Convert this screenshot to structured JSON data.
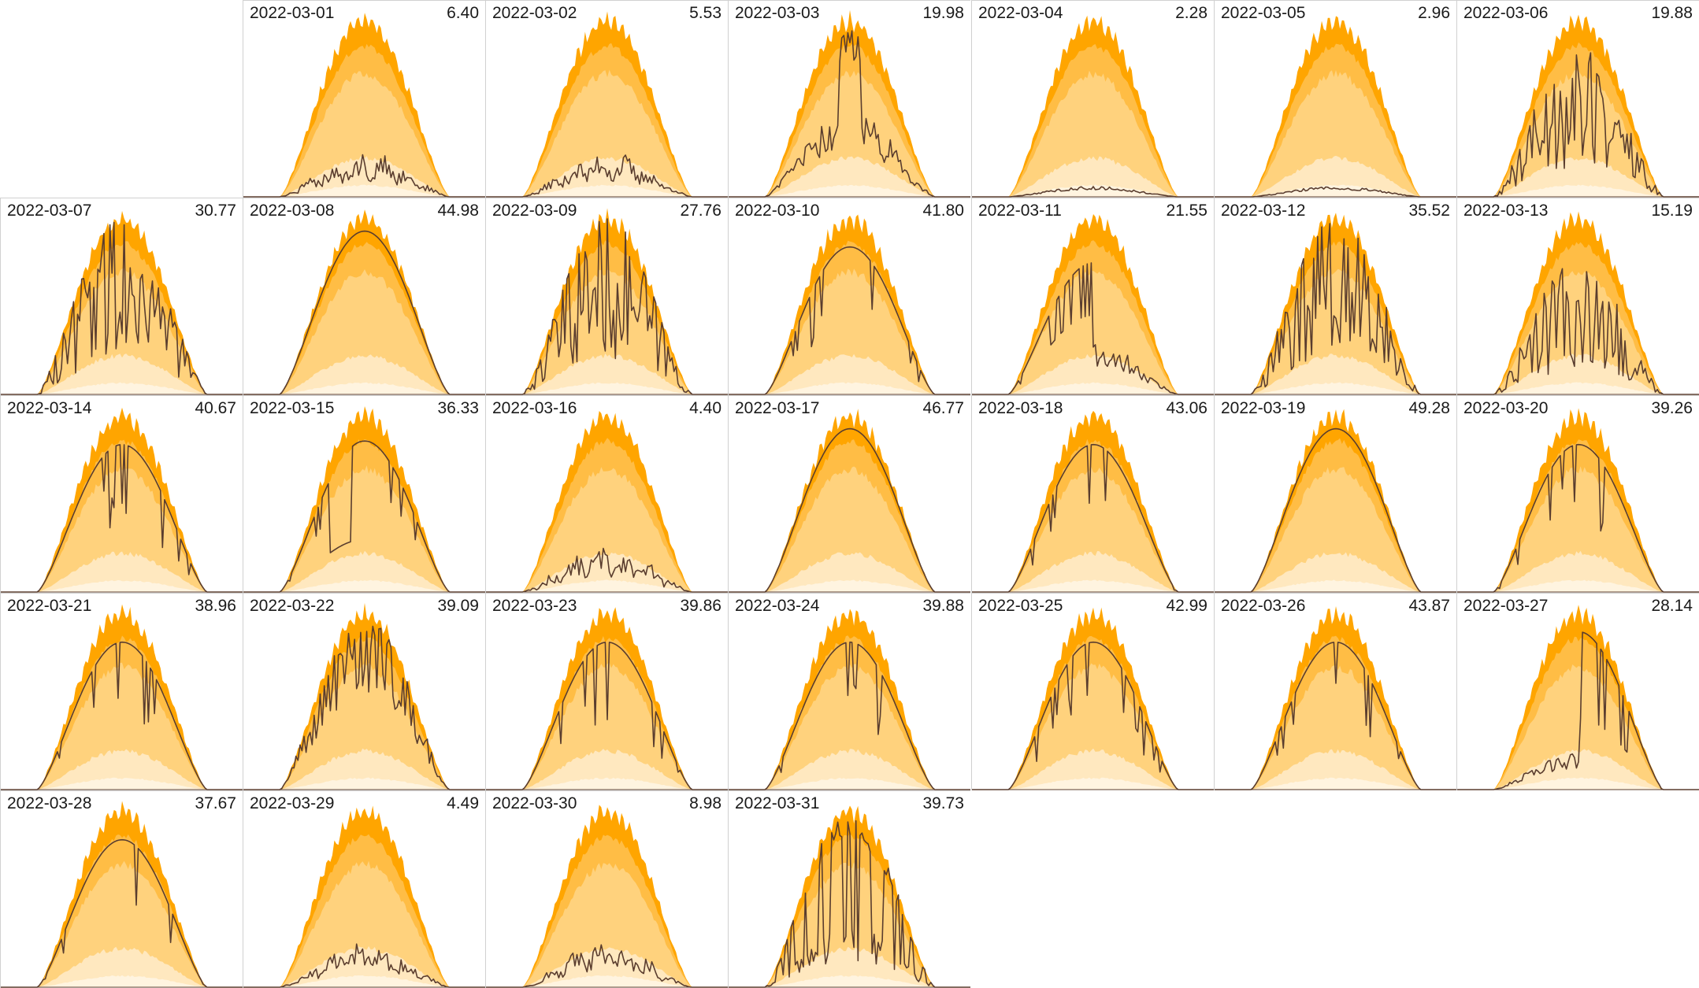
{
  "chart_data": {
    "type": "area",
    "layout": "calendar-small-multiples",
    "colors": {
      "max_band": "#ffa500",
      "upper_band": "#ffbd45",
      "mid_band": "#ffd27d",
      "low_band": "#ffe8bf",
      "min_band": "#fff4e0",
      "actual_line": "#5a3d2e",
      "negative": "#e03020",
      "border": "#d0d0d0"
    },
    "panels": [
      {
        "date": "2022-03-01",
        "value": "6.40",
        "total": 6.4,
        "profile": "low"
      },
      {
        "date": "2022-03-02",
        "value": "5.53",
        "total": 5.53,
        "profile": "low"
      },
      {
        "date": "2022-03-03",
        "value": "19.98",
        "total": 19.98,
        "profile": "peaky-mid"
      },
      {
        "date": "2022-03-04",
        "value": "2.28",
        "total": 2.28,
        "profile": "very-low"
      },
      {
        "date": "2022-03-05",
        "value": "2.96",
        "total": 2.96,
        "profile": "very-low"
      },
      {
        "date": "2022-03-06",
        "value": "19.88",
        "total": 19.88,
        "profile": "spiky"
      },
      {
        "date": "2022-03-07",
        "value": "30.77",
        "total": 30.77,
        "profile": "spiky"
      },
      {
        "date": "2022-03-08",
        "value": "44.98",
        "total": 44.98,
        "profile": "clear"
      },
      {
        "date": "2022-03-09",
        "value": "27.76",
        "total": 27.76,
        "profile": "spiky"
      },
      {
        "date": "2022-03-10",
        "value": "41.80",
        "total": 41.8,
        "profile": "mostly-clear"
      },
      {
        "date": "2022-03-11",
        "value": "21.55",
        "total": 21.55,
        "profile": "morning"
      },
      {
        "date": "2022-03-12",
        "value": "35.52",
        "total": 35.52,
        "profile": "spiky"
      },
      {
        "date": "2022-03-13",
        "value": "15.19",
        "total": 15.19,
        "profile": "spiky"
      },
      {
        "date": "2022-03-14",
        "value": "40.67",
        "total": 40.67,
        "profile": "mostly-clear"
      },
      {
        "date": "2022-03-15",
        "value": "36.33",
        "total": 36.33,
        "profile": "dip"
      },
      {
        "date": "2022-03-16",
        "value": "4.40",
        "total": 4.4,
        "profile": "low"
      },
      {
        "date": "2022-03-17",
        "value": "46.77",
        "total": 46.77,
        "profile": "clear"
      },
      {
        "date": "2022-03-18",
        "value": "43.06",
        "total": 43.06,
        "profile": "mostly-clear"
      },
      {
        "date": "2022-03-19",
        "value": "49.28",
        "total": 49.28,
        "profile": "clear"
      },
      {
        "date": "2022-03-20",
        "value": "39.26",
        "total": 39.26,
        "profile": "mostly-clear"
      },
      {
        "date": "2022-03-21",
        "value": "38.96",
        "total": 38.96,
        "profile": "mostly-clear"
      },
      {
        "date": "2022-03-22",
        "value": "39.09",
        "total": 39.09,
        "profile": "spiky-high"
      },
      {
        "date": "2022-03-23",
        "value": "39.86",
        "total": 39.86,
        "profile": "mostly-clear"
      },
      {
        "date": "2022-03-24",
        "value": "39.88",
        "total": 39.88,
        "profile": "mostly-clear"
      },
      {
        "date": "2022-03-25",
        "value": "42.99",
        "total": 42.99,
        "profile": "mostly-clear"
      },
      {
        "date": "2022-03-26",
        "value": "43.87",
        "total": 43.87,
        "profile": "mostly-clear"
      },
      {
        "date": "2022-03-27",
        "value": "28.14",
        "total": 28.14,
        "profile": "afternoon"
      },
      {
        "date": "2022-03-28",
        "value": "37.67",
        "total": 37.67,
        "profile": "mostly-clear"
      },
      {
        "date": "2022-03-29",
        "value": "4.49",
        "total": 4.49,
        "profile": "low"
      },
      {
        "date": "2022-03-30",
        "value": "8.98",
        "total": 8.98,
        "profile": "low"
      },
      {
        "date": "2022-03-31",
        "value": "39.73",
        "total": 39.73,
        "profile": "very-spiky"
      }
    ]
  }
}
